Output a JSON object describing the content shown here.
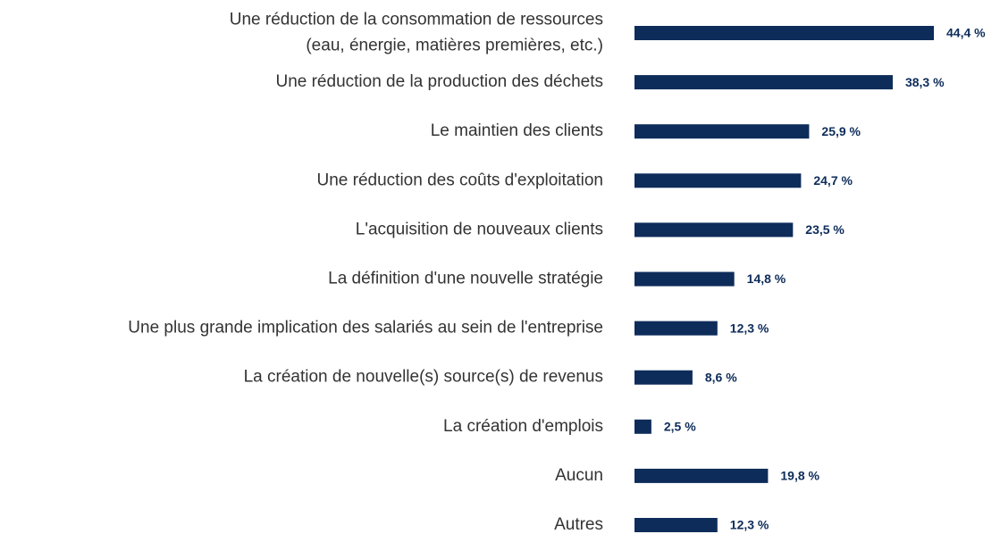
{
  "chart_data": {
    "type": "bar",
    "orientation": "horizontal",
    "categories": [
      [
        "Une réduction de la consommation de ressources",
        "(eau, énergie, matières premières, etc.)"
      ],
      "Une réduction de la production des déchets",
      "Le maintien des clients",
      "Une réduction des coûts d'exploitation",
      "L'acquisition de nouveaux clients",
      "La définition d'une nouvelle stratégie",
      "Une plus grande implication des salariés au sein de l'entreprise",
      "La création de nouvelle(s) source(s) de revenus",
      "La création d'emplois",
      "Aucun",
      "Autres"
    ],
    "values": [
      44.4,
      38.3,
      25.9,
      24.7,
      23.5,
      14.8,
      12.3,
      8.6,
      2.5,
      19.8,
      12.3
    ],
    "value_labels": [
      "44,4 %",
      "38,3 %",
      "25,9 %",
      "24,7 %",
      "23,5 %",
      "14,8 %",
      "12,3 %",
      "8,6 %",
      "2,5 %",
      "19,8 %",
      "12,3 %"
    ],
    "color": "#0d2c5a"
  }
}
